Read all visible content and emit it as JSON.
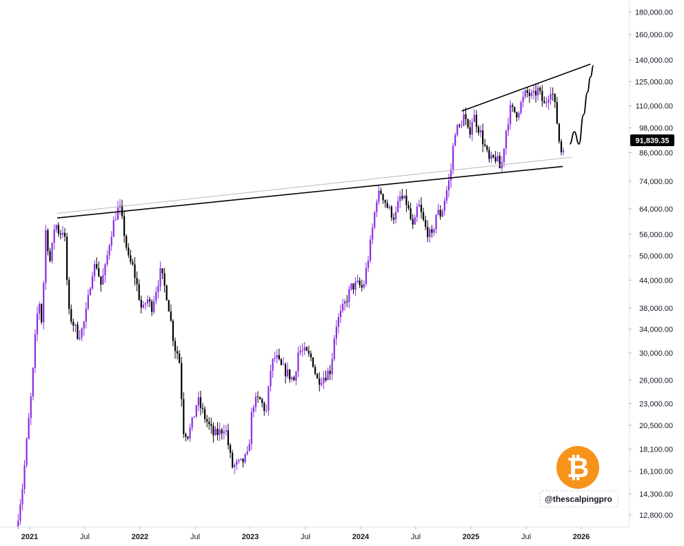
{
  "chart_data": {
    "type": "candlestick",
    "scale": "log",
    "instrument_icon": "bitcoin-icon",
    "last_price": "91,839.35",
    "y_ticks": [
      {
        "value": 180000,
        "label": "180,000.00"
      },
      {
        "value": 160000,
        "label": "160,000.00"
      },
      {
        "value": 140000,
        "label": "140,000.00"
      },
      {
        "value": 125000,
        "label": "125,000.00"
      },
      {
        "value": 110000,
        "label": "110,000.00"
      },
      {
        "value": 98000,
        "label": "98,000.00"
      },
      {
        "value": 86000,
        "label": "86,000.00"
      },
      {
        "value": 74000,
        "label": "74,000.00"
      },
      {
        "value": 64000,
        "label": "64,000.00"
      },
      {
        "value": 56000,
        "label": "56,000.00"
      },
      {
        "value": 50000,
        "label": "50,000.00"
      },
      {
        "value": 44000,
        "label": "44,000.00"
      },
      {
        "value": 38000,
        "label": "38,000.00"
      },
      {
        "value": 34000,
        "label": "34,000.00"
      },
      {
        "value": 30000,
        "label": "30,000.00"
      },
      {
        "value": 26000,
        "label": "26,000.00"
      },
      {
        "value": 23000,
        "label": "23,000.00"
      },
      {
        "value": 20500,
        "label": "20,500.00"
      },
      {
        "value": 18100,
        "label": "18,100.00"
      },
      {
        "value": 16100,
        "label": "16,100.00"
      },
      {
        "value": 14300,
        "label": "14,300.00"
      },
      {
        "value": 12800,
        "label": "12,800.00"
      }
    ],
    "x_ticks": [
      {
        "date": "2021-01",
        "label": "2021",
        "year": true
      },
      {
        "date": "2021-07",
        "label": "Jul",
        "year": false
      },
      {
        "date": "2022-01",
        "label": "2022",
        "year": true
      },
      {
        "date": "2022-07",
        "label": "Jul",
        "year": false
      },
      {
        "date": "2023-01",
        "label": "2023",
        "year": true
      },
      {
        "date": "2023-07",
        "label": "Jul",
        "year": false
      },
      {
        "date": "2024-01",
        "label": "2024",
        "year": true
      },
      {
        "date": "2024-07",
        "label": "Jul",
        "year": false
      },
      {
        "date": "2025-01",
        "label": "2025",
        "year": true
      },
      {
        "date": "2025-07",
        "label": "Jul",
        "year": false
      },
      {
        "date": "2026-01",
        "label": "2026",
        "year": true
      }
    ],
    "price_path": [
      [
        "2020-12",
        12800
      ],
      [
        "2020-12",
        15000
      ],
      [
        "2021-01",
        19500
      ],
      [
        "2021-01",
        25000
      ],
      [
        "2021-02",
        34000
      ],
      [
        "2021-02",
        40000
      ],
      [
        "2021-02",
        35000
      ],
      [
        "2021-03",
        57000
      ],
      [
        "2021-03",
        48000
      ],
      [
        "2021-04",
        60000
      ],
      [
        "2021-04",
        56000
      ],
      [
        "2021-05",
        58000
      ],
      [
        "2021-05",
        37000
      ],
      [
        "2021-06",
        35000
      ],
      [
        "2021-06",
        33000
      ],
      [
        "2021-07",
        34000
      ],
      [
        "2021-07",
        38000
      ],
      [
        "2021-08",
        46000
      ],
      [
        "2021-08",
        48000
      ],
      [
        "2021-09",
        43000
      ],
      [
        "2021-09",
        47000
      ],
      [
        "2021-10",
        55000
      ],
      [
        "2021-10",
        61000
      ],
      [
        "2021-11",
        65000
      ],
      [
        "2021-11",
        57000
      ],
      [
        "2021-12",
        49000
      ],
      [
        "2021-12",
        47000
      ],
      [
        "2022-01",
        42000
      ],
      [
        "2022-01",
        37000
      ],
      [
        "2022-02",
        40000
      ],
      [
        "2022-02",
        38000
      ],
      [
        "2022-03",
        42000
      ],
      [
        "2022-03",
        46000
      ],
      [
        "2022-04",
        40000
      ],
      [
        "2022-05",
        31000
      ],
      [
        "2022-05",
        29500
      ],
      [
        "2022-06",
        20000
      ],
      [
        "2022-06",
        19500
      ],
      [
        "2022-07",
        21000
      ],
      [
        "2022-07",
        23500
      ],
      [
        "2022-08",
        21500
      ],
      [
        "2022-09",
        19500
      ],
      [
        "2022-10",
        19800
      ],
      [
        "2022-10",
        20500
      ],
      [
        "2022-11",
        16500
      ],
      [
        "2022-12",
        16800
      ],
      [
        "2023-01",
        17500
      ],
      [
        "2023-01",
        23000
      ],
      [
        "2023-02",
        23500
      ],
      [
        "2023-03",
        22000
      ],
      [
        "2023-03",
        28000
      ],
      [
        "2023-04",
        29500
      ],
      [
        "2023-04",
        28000
      ],
      [
        "2023-05",
        27000
      ],
      [
        "2023-06",
        26000
      ],
      [
        "2023-06",
        30500
      ],
      [
        "2023-07",
        30000
      ],
      [
        "2023-08",
        29000
      ],
      [
        "2023-08",
        26000
      ],
      [
        "2023-09",
        26500
      ],
      [
        "2023-10",
        27500
      ],
      [
        "2023-10",
        34500
      ],
      [
        "2023-11",
        37500
      ],
      [
        "2023-12",
        42500
      ],
      [
        "2024-01",
        43000
      ],
      [
        "2024-01",
        42000
      ],
      [
        "2024-02",
        52000
      ],
      [
        "2024-03",
        68000
      ],
      [
        "2024-03",
        70000
      ],
      [
        "2024-04",
        64000
      ],
      [
        "2024-05",
        61000
      ],
      [
        "2024-05",
        68000
      ],
      [
        "2024-06",
        66000
      ],
      [
        "2024-07",
        57000
      ],
      [
        "2024-07",
        66000
      ],
      [
        "2024-08",
        58000
      ],
      [
        "2024-09",
        55000
      ],
      [
        "2024-09",
        63000
      ],
      [
        "2024-10",
        62000
      ],
      [
        "2024-10",
        69000
      ],
      [
        "2024-11",
        76000
      ],
      [
        "2024-11",
        97000
      ],
      [
        "2024-12",
        98000
      ],
      [
        "2024-12",
        105000
      ],
      [
        "2025-01",
        94000
      ],
      [
        "2025-01",
        105000
      ],
      [
        "2025-02",
        96000
      ],
      [
        "2025-03",
        82000
      ],
      [
        "2025-04",
        84000
      ],
      [
        "2025-04",
        78000
      ],
      [
        "2025-05",
        95000
      ],
      [
        "2025-05",
        108000
      ],
      [
        "2025-06",
        106000
      ],
      [
        "2025-07",
        118000
      ],
      [
        "2025-08",
        115000
      ],
      [
        "2025-08",
        120000
      ],
      [
        "2025-09",
        110000
      ],
      [
        "2025-10",
        122000
      ],
      [
        "2025-10",
        106000
      ],
      [
        "2025-11",
        86000
      ],
      [
        "2025-11",
        91839
      ]
    ],
    "trendlines": [
      {
        "from": [
          "2021-04",
          61000
        ],
        "to": [
          "2025-11",
          80000
        ]
      },
      {
        "from": [
          "2021-04",
          62500
        ],
        "to": [
          "2025-12",
          84000
        ]
      },
      {
        "from": [
          "2024-12",
          107000
        ],
        "to": [
          "2026-02",
          137000
        ]
      }
    ],
    "projection_path": [
      [
        "2025-12",
        90000
      ],
      [
        "2025-12",
        96000
      ],
      [
        "2026-01",
        90000
      ],
      [
        "2026-01",
        105000
      ],
      [
        "2026-02",
        118000
      ],
      [
        "2026-02",
        128000
      ],
      [
        "2026-02",
        136000
      ]
    ]
  },
  "watermark_text": "@thescalpingpro",
  "colors": {
    "up_candle": "#8a2be2",
    "down_candle": "#000000",
    "trendline": "#000000",
    "trendline_light": "#b8b8b8",
    "price_tag": "#000000",
    "bitcoin": "#f7931a"
  }
}
